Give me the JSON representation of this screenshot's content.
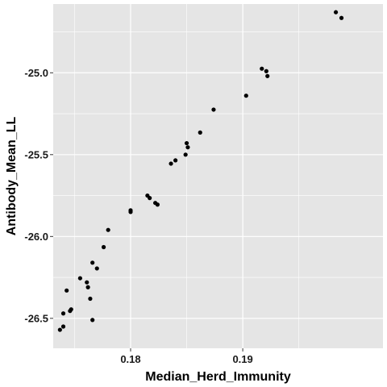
{
  "chart_data": {
    "type": "scatter",
    "xlabel": "Median_Herd_Immunity",
    "ylabel": "Antibody_Mean_LL",
    "xlim": [
      0.1731,
      0.2025
    ],
    "ylim": [
      -26.683,
      -24.58
    ],
    "x_ticks": [
      0.18,
      0.19
    ],
    "x_tick_labels": [
      "0.18",
      "0.19"
    ],
    "y_ticks": [
      -26.5,
      -26.0,
      -25.5,
      -25.0
    ],
    "y_tick_labels": [
      "-26.5",
      "-26.0",
      "-25.5",
      "-25.0"
    ],
    "grid": true,
    "legend": "none",
    "panel_color": "#e5e5e5",
    "grid_color": "#ffffff",
    "point_color": "#000000",
    "series": [
      {
        "points": [
          [
            0.1983,
            -24.63
          ],
          [
            0.1988,
            -24.665
          ],
          [
            0.1917,
            -24.975
          ],
          [
            0.1921,
            -24.99
          ],
          [
            0.1922,
            -25.02
          ],
          [
            0.1903,
            -25.14
          ],
          [
            0.1874,
            -25.225
          ],
          [
            0.1862,
            -25.365
          ],
          [
            0.185,
            -25.43
          ],
          [
            0.1851,
            -25.455
          ],
          [
            0.1849,
            -25.5
          ],
          [
            0.184,
            -25.535
          ],
          [
            0.1836,
            -25.555
          ],
          [
            0.1815,
            -25.75
          ],
          [
            0.1817,
            -25.765
          ],
          [
            0.1822,
            -25.795
          ],
          [
            0.1824,
            -25.805
          ],
          [
            0.18,
            -25.84
          ],
          [
            0.18,
            -25.85
          ],
          [
            0.178,
            -25.96
          ],
          [
            0.1776,
            -26.065
          ],
          [
            0.1766,
            -26.16
          ],
          [
            0.177,
            -26.195
          ],
          [
            0.1755,
            -26.255
          ],
          [
            0.1761,
            -26.28
          ],
          [
            0.1762,
            -26.31
          ],
          [
            0.1743,
            -26.33
          ],
          [
            0.1764,
            -26.38
          ],
          [
            0.1747,
            -26.445
          ],
          [
            0.1746,
            -26.455
          ],
          [
            0.174,
            -26.47
          ],
          [
            0.1766,
            -26.51
          ],
          [
            0.174,
            -26.55
          ],
          [
            0.1737,
            -26.57
          ]
        ]
      }
    ]
  }
}
